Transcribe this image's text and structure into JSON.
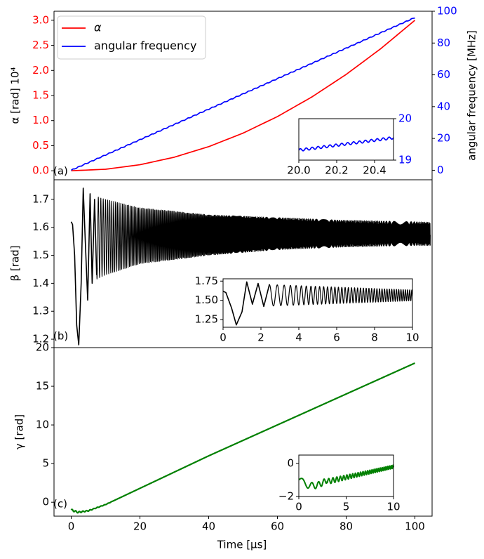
{
  "chart_data": [
    {
      "type": "line",
      "panel_label": "(a)",
      "ylabel": "α [rad] 10⁴",
      "ylabel_right": "angular frequency [MHz]",
      "xlim": [
        -5,
        105
      ],
      "ylim": [
        -0.18,
        3.18
      ],
      "ylim_right": [
        -6,
        100
      ],
      "yticks": [
        0.0,
        0.5,
        1.0,
        1.5,
        2.0,
        2.5,
        3.0
      ],
      "ytick_labels": [
        "0.0",
        "0.5",
        "1.0",
        "1.5",
        "2.0",
        "2.5",
        "3.0"
      ],
      "yticks_right": [
        0,
        20,
        40,
        60,
        80,
        100
      ],
      "ytick_labels_right": [
        "0",
        "20",
        "40",
        "60",
        "80",
        "100"
      ],
      "colors": {
        "alpha": "#ff0000",
        "freq": "#0000ff",
        "left_ticks": "#ff0000",
        "right_ticks": "#0000ff"
      },
      "series": [
        {
          "name": "α",
          "axis": "left",
          "color": "#ff0000",
          "x": [
            0,
            10,
            20,
            30,
            40,
            50,
            60,
            70,
            80,
            90,
            100
          ],
          "values": [
            0,
            0.03,
            0.12,
            0.27,
            0.48,
            0.75,
            1.08,
            1.47,
            1.92,
            2.43,
            3.0
          ]
        },
        {
          "name": "angular frequency",
          "axis": "right",
          "color": "#0000ff",
          "x": [
            0,
            20,
            40,
            60,
            80,
            100
          ],
          "values": [
            0,
            19.2,
            38.4,
            57.6,
            76.8,
            96
          ]
        }
      ],
      "legend": {
        "position": "top-left",
        "entries": [
          "α",
          "angular frequency"
        ]
      },
      "inset": {
        "xlim": [
          20.0,
          20.5
        ],
        "ylim": [
          19,
          20
        ],
        "xticks": [
          20.0,
          20.2,
          20.4
        ],
        "xtick_labels": [
          "20.0",
          "20.2",
          "20.4"
        ],
        "yticks": [
          19,
          20
        ],
        "ytick_labels": [
          "19",
          "20"
        ],
        "series": [
          {
            "name": "angular frequency",
            "color": "#0000ff",
            "x": [
              20.0,
              20.1,
              20.2,
              20.3,
              20.4,
              20.5
            ],
            "values": [
              19.24,
              19.3,
              19.36,
              19.42,
              19.48,
              19.54
            ]
          }
        ],
        "oscillation_amplitude": 0.03
      }
    },
    {
      "type": "line",
      "panel_label": "(b)",
      "ylabel": "β [rad]",
      "xlim": [
        -5,
        105
      ],
      "ylim": [
        1.17,
        1.77
      ],
      "yticks": [
        1.2,
        1.3,
        1.4,
        1.5,
        1.6,
        1.7
      ],
      "ytick_labels": [
        "1.2",
        "1.3",
        "1.4",
        "1.5",
        "1.6",
        "1.7"
      ],
      "series": [
        {
          "name": "β",
          "color": "#000000",
          "x": [
            0,
            1,
            2.2,
            3.5,
            5,
            10,
            20,
            40,
            60,
            80,
            100,
            105
          ],
          "envelope_upper": [
            1.62,
            1.55,
            1.28,
            1.74,
            1.72,
            1.7,
            1.67,
            1.645,
            1.635,
            1.625,
            1.62,
            1.618
          ],
          "envelope_lower": [
            1.62,
            1.5,
            1.18,
            1.34,
            1.4,
            1.43,
            1.47,
            1.5,
            1.52,
            1.53,
            1.535,
            1.535
          ]
        }
      ],
      "inset": {
        "xlim": [
          0,
          10
        ],
        "ylim": [
          1.15,
          1.78
        ],
        "xticks": [
          0,
          2,
          4,
          6,
          8,
          10
        ],
        "xtick_labels": [
          "0",
          "2",
          "4",
          "6",
          "8",
          "10"
        ],
        "yticks": [
          1.25,
          1.5,
          1.75
        ],
        "ytick_labels": [
          "1.25",
          "1.50",
          "1.75"
        ],
        "series": [
          {
            "name": "β",
            "color": "#000000",
            "start": 1.62,
            "min": 1.18,
            "first_peak": 1.74
          }
        ]
      }
    },
    {
      "type": "line",
      "panel_label": "(c)",
      "ylabel": "γ [rad]",
      "xlabel": "Time [μs]",
      "xlim": [
        -5,
        105
      ],
      "ylim": [
        -1.8,
        20
      ],
      "xticks": [
        0,
        20,
        40,
        60,
        80,
        100
      ],
      "xtick_labels": [
        "0",
        "20",
        "40",
        "60",
        "80",
        "100"
      ],
      "yticks": [
        0,
        5,
        10,
        15,
        20
      ],
      "ytick_labels": [
        "0",
        "5",
        "10",
        "15",
        "20"
      ],
      "series": [
        {
          "name": "γ",
          "color": "#008000",
          "x": [
            0,
            2,
            5,
            10,
            20,
            40,
            60,
            80,
            100
          ],
          "values": [
            -1.0,
            -1.3,
            -1.1,
            -0.3,
            1.8,
            6.0,
            10.0,
            14.0,
            18.0
          ]
        }
      ],
      "inset": {
        "xlim": [
          0,
          10
        ],
        "ylim": [
          -2,
          0.5
        ],
        "xticks": [
          0,
          5,
          10
        ],
        "xtick_labels": [
          "0",
          "5",
          "10"
        ],
        "yticks": [
          -2,
          0
        ],
        "ytick_labels": [
          "−2",
          "0"
        ],
        "series": [
          {
            "name": "γ",
            "color": "#008000",
            "start": -1.0,
            "end": -0.2
          }
        ]
      }
    }
  ]
}
